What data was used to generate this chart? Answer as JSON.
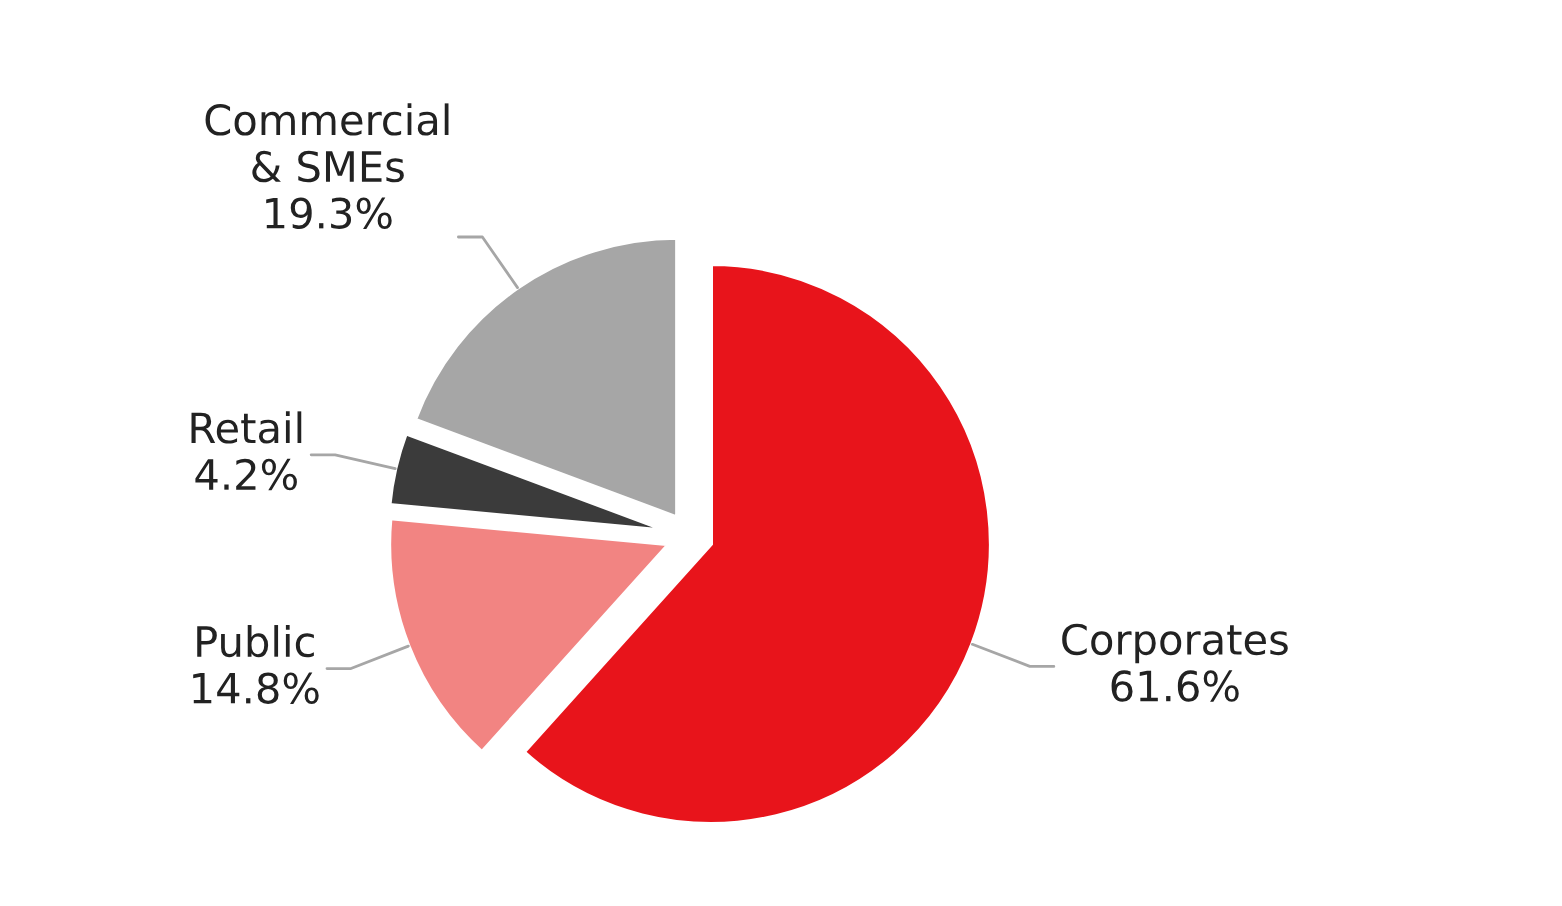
{
  "chart_data": {
    "type": "pie",
    "categories": [
      "Corporates",
      "Public",
      "Retail",
      "Commercial\n& SMEs"
    ],
    "values": [
      61.6,
      14.8,
      4.2,
      19.3
    ],
    "value_labels": [
      "61.6%",
      "14.8%",
      "4.2%",
      "19.3%"
    ],
    "colors": [
      "#e8141b",
      "#f28482",
      "#3b3b3b",
      "#a6a6a6"
    ],
    "legend": false
  }
}
